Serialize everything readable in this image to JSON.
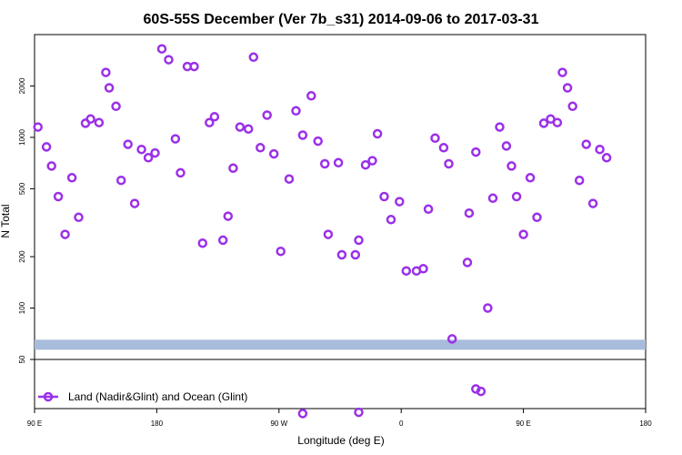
{
  "chart_data": {
    "type": "scatter",
    "title": "60S-55S December (Ver 7b_s31)   2014-09-06 to 2017-03-31",
    "xlabel": "Longitude (deg E)",
    "ylabel": "N Total",
    "xscale": "linear",
    "yscale": "log",
    "xlim": [
      90,
      450
    ],
    "ylim": [
      30,
      4000
    ],
    "x_ticks": [
      {
        "value": 90,
        "label": "90 E"
      },
      {
        "value": 162,
        "label": "180"
      },
      {
        "value": 234,
        "label": "90 W"
      },
      {
        "value": 306,
        "label": "0"
      },
      {
        "value": 378,
        "label": "90 E"
      },
      {
        "value": 450,
        "label": "180"
      }
    ],
    "y_ticks": [
      {
        "value": 50,
        "label": "50"
      },
      {
        "value": 100,
        "label": "100"
      },
      {
        "value": 200,
        "label": "200"
      },
      {
        "value": 500,
        "label": "500"
      },
      {
        "value": 1000,
        "label": "1000"
      },
      {
        "value": 2000,
        "label": "2000"
      }
    ],
    "grid": false,
    "legend_position": "bottom-left",
    "separator_value": 50,
    "band": {
      "value": 61,
      "color": "#a8bcdc"
    },
    "series": [
      {
        "name": "Land (Nadir&Glint) and Ocean (Glint)",
        "color": "#9b30e8",
        "marker": "open-circle",
        "points": [
          [
            92,
            1150
          ],
          [
            97,
            880
          ],
          [
            100,
            680
          ],
          [
            104,
            450
          ],
          [
            108,
            270
          ],
          [
            112,
            580
          ],
          [
            116,
            340
          ],
          [
            120,
            1210
          ],
          [
            123,
            1280
          ],
          [
            128,
            1220
          ],
          [
            132,
            2400
          ],
          [
            134,
            1950
          ],
          [
            138,
            1520
          ],
          [
            141,
            560
          ],
          [
            145,
            910
          ],
          [
            149,
            410
          ],
          [
            153,
            850
          ],
          [
            157,
            760
          ],
          [
            161,
            810
          ],
          [
            165,
            3300
          ],
          [
            169,
            2850
          ],
          [
            173,
            980
          ],
          [
            176,
            620
          ],
          [
            180,
            2600
          ],
          [
            184,
            2600
          ],
          [
            189,
            240
          ],
          [
            193,
            1220
          ],
          [
            196,
            1320
          ],
          [
            201,
            250
          ],
          [
            204,
            345
          ],
          [
            207,
            660
          ],
          [
            211,
            1150
          ],
          [
            216,
            1120
          ],
          [
            219,
            2950
          ],
          [
            223,
            870
          ],
          [
            227,
            1350
          ],
          [
            231,
            800
          ],
          [
            235,
            215
          ],
          [
            240,
            570
          ],
          [
            244,
            1430
          ],
          [
            248,
            1030
          ],
          [
            253,
            1750
          ],
          [
            257,
            950
          ],
          [
            261,
            700
          ],
          [
            263,
            270
          ],
          [
            269,
            710
          ],
          [
            271,
            205
          ],
          [
            279,
            205
          ],
          [
            281,
            250
          ],
          [
            285,
            690
          ],
          [
            289,
            730
          ],
          [
            292,
            1050
          ],
          [
            296,
            450
          ],
          [
            300,
            330
          ],
          [
            305,
            420
          ],
          [
            309,
            165
          ],
          [
            315,
            165
          ],
          [
            319,
            170
          ],
          [
            322,
            380
          ],
          [
            326,
            990
          ],
          [
            331,
            870
          ],
          [
            334,
            700
          ],
          [
            336,
            66
          ],
          [
            345,
            185
          ],
          [
            346,
            360
          ],
          [
            350,
            820
          ],
          [
            357,
            100
          ],
          [
            360,
            440
          ],
          [
            364,
            1150
          ],
          [
            368,
            890
          ],
          [
            371,
            680
          ],
          [
            374,
            450
          ],
          [
            378,
            270
          ],
          [
            382,
            580
          ],
          [
            386,
            340
          ],
          [
            390,
            1210
          ],
          [
            394,
            1280
          ],
          [
            398,
            1220
          ],
          [
            401,
            2400
          ],
          [
            404,
            1950
          ],
          [
            407,
            1520
          ],
          [
            411,
            560
          ],
          [
            415,
            910
          ],
          [
            419,
            410
          ],
          [
            423,
            850
          ],
          [
            427,
            760
          ]
        ],
        "below_separator": [
          [
            248,
            28
          ],
          [
            281,
            28.5
          ],
          [
            350,
            38
          ],
          [
            353,
            37
          ]
        ]
      }
    ]
  }
}
